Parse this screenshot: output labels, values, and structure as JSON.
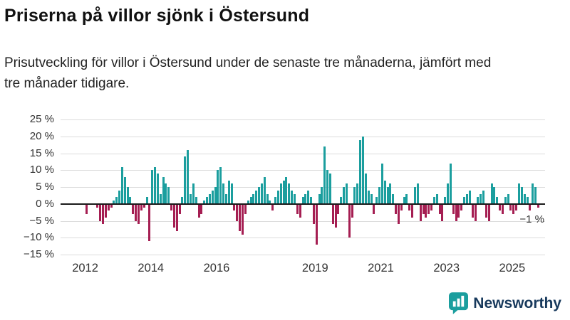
{
  "header": {
    "title": "Priserna på villor sjönk i Östersund",
    "subtitle": "Prisutveckling för villor i Östersund under de senaste tre månaderna, jämfört med tre månader tidigare."
  },
  "chart_data": {
    "type": "bar",
    "unit": "%",
    "frequency": "monthly",
    "x_start": "2012-01",
    "ylim": [
      -15,
      25
    ],
    "grid": "horizontal",
    "y_ticks": [
      {
        "value": 25,
        "label": "25 %"
      },
      {
        "value": 20,
        "label": "20 %"
      },
      {
        "value": 15,
        "label": "15 %"
      },
      {
        "value": 10,
        "label": "10 %"
      },
      {
        "value": 5,
        "label": "5 %"
      },
      {
        "value": 0,
        "label": "0 %"
      },
      {
        "value": -5,
        "label": "−5 %"
      },
      {
        "value": -10,
        "label": "−10 %"
      },
      {
        "value": -15,
        "label": "−15 %"
      }
    ],
    "x_tick_years": [
      2012,
      2014,
      2016,
      2019,
      2021,
      2023,
      2025
    ],
    "values": [
      -3,
      0,
      0,
      0,
      -1,
      -5,
      -6,
      -4,
      -2,
      -1,
      1,
      2,
      4,
      11,
      8,
      5,
      2,
      -3,
      -5,
      -6,
      -2,
      -1,
      2,
      -11,
      10,
      11,
      9,
      3,
      8,
      6,
      5,
      -2,
      -7,
      -8,
      -3,
      2,
      14,
      16,
      3,
      6,
      2,
      -4,
      -3,
      1,
      2,
      3,
      4,
      5,
      10,
      11,
      6,
      3,
      7,
      6,
      -2,
      -5,
      -8,
      -9,
      -3,
      1,
      2,
      3,
      4,
      5,
      6,
      8,
      3,
      1,
      -2,
      2,
      4,
      6,
      7,
      8,
      6,
      4,
      3,
      -3,
      -4,
      2,
      3,
      4,
      2,
      -6,
      -12,
      3,
      5,
      17,
      10,
      9,
      -6,
      -7,
      -3,
      2,
      5,
      6,
      -10,
      -4,
      5,
      6,
      19,
      20,
      9,
      4,
      3,
      -3,
      2,
      5,
      12,
      7,
      5,
      6,
      3,
      -3,
      -6,
      -2,
      2,
      3,
      -2,
      -4,
      5,
      6,
      -5,
      -3,
      -4,
      -3,
      -2,
      2,
      3,
      -3,
      -5,
      2,
      6,
      12,
      -3,
      -5,
      -4,
      -2,
      2,
      3,
      4,
      -4,
      -5,
      2,
      3,
      4,
      -4,
      -5,
      6,
      5,
      2,
      -2,
      -3,
      2,
      3,
      -2,
      -3,
      -2,
      6,
      5,
      3,
      2,
      -2,
      6,
      5,
      -1
    ],
    "annotation": {
      "text": "−1 %",
      "value": -1
    },
    "colors": {
      "positive": "#1b9e9e",
      "negative": "#a51e52"
    }
  },
  "footer": {
    "brand": "Newsworthy",
    "brand_teal": "#1b9e9e",
    "brand_navy": "#17395c"
  }
}
